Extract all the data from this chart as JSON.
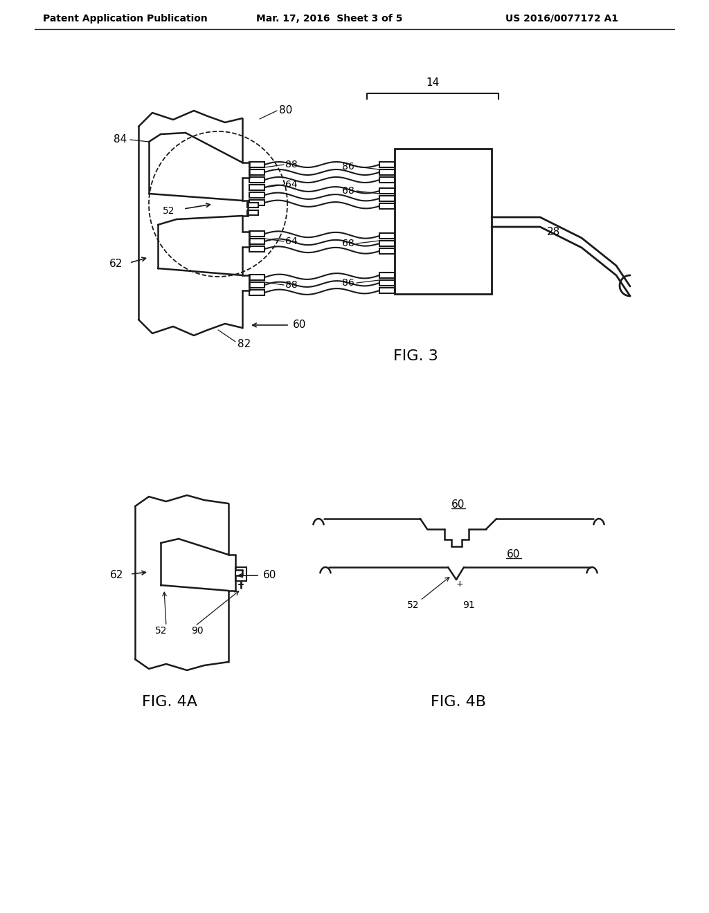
{
  "bg_color": "#ffffff",
  "line_color": "#1a1a1a",
  "header_left": "Patent Application Publication",
  "header_mid": "Mar. 17, 2016  Sheet 3 of 5",
  "header_right": "US 2016/0077172 A1",
  "fig3_label": "FIG. 3",
  "fig4a_label": "FIG. 4A",
  "fig4b_label": "FIG. 4B",
  "lw": 1.8
}
